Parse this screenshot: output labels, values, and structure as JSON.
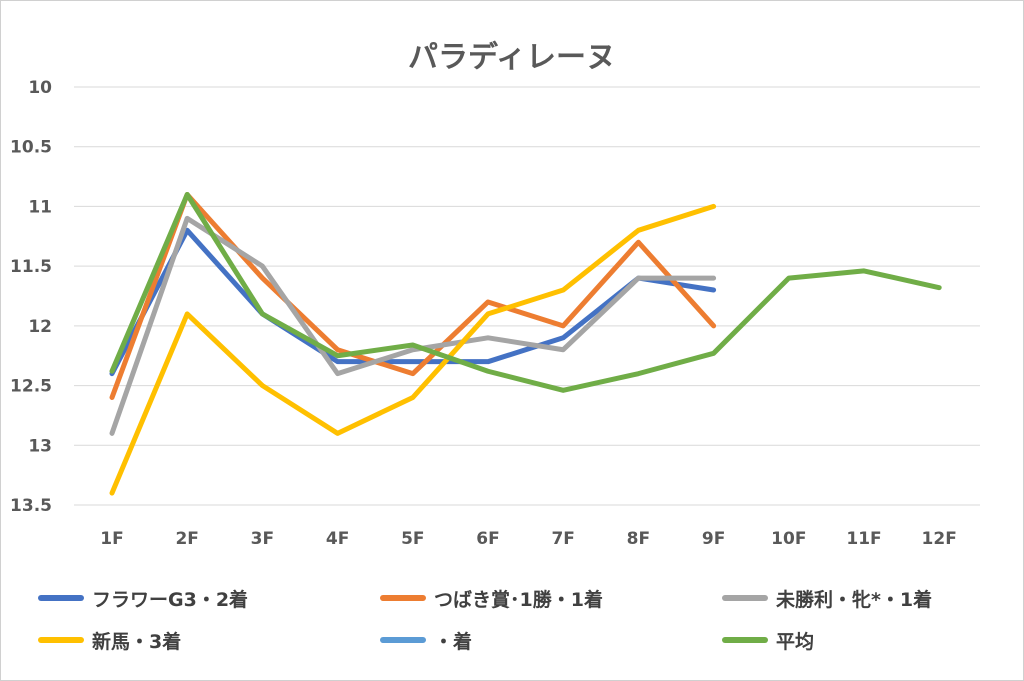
{
  "chart_data": {
    "type": "line",
    "title": "パラディレーヌ",
    "categories": [
      "1F",
      "2F",
      "3F",
      "4F",
      "5F",
      "6F",
      "7F",
      "8F",
      "9F",
      "10F",
      "11F",
      "12F"
    ],
    "y_tick_labels": [
      "10",
      "10.5",
      "11",
      "11.5",
      "12",
      "12.5",
      "13",
      "13.5"
    ],
    "ylim": [
      10,
      13.5
    ],
    "y_reversed": true,
    "grid": "horizontal",
    "legend_position": "bottom",
    "series": [
      {
        "name": "フラワーG3・2着",
        "color": "#4472C4",
        "values": [
          12.4,
          11.2,
          11.9,
          12.3,
          12.3,
          12.3,
          12.1,
          11.6,
          11.7,
          null,
          null,
          null
        ]
      },
      {
        "name": "つばき賞･1勝・1着",
        "color": "#ED7D31",
        "values": [
          12.6,
          10.9,
          11.6,
          12.2,
          12.4,
          11.8,
          12.0,
          11.3,
          12.0,
          null,
          null,
          null
        ]
      },
      {
        "name": "未勝利・牝*・1着",
        "color": "#A5A5A5",
        "values": [
          12.9,
          11.1,
          11.5,
          12.4,
          12.2,
          12.1,
          12.2,
          11.6,
          11.6,
          null,
          null,
          null
        ]
      },
      {
        "name": "新馬・3着",
        "color": "#FFC000",
        "values": [
          13.4,
          11.9,
          12.5,
          12.9,
          12.6,
          11.9,
          11.7,
          11.2,
          11.0,
          null,
          null,
          null
        ]
      },
      {
        "name": "・着",
        "color": "#5B9BD5",
        "values": [
          null,
          null,
          null,
          null,
          null,
          null,
          null,
          null,
          null,
          null,
          null,
          null
        ]
      },
      {
        "name": "平均",
        "color": "#70AD47",
        "values": [
          12.38,
          10.9,
          11.9,
          12.25,
          12.16,
          12.38,
          12.54,
          12.4,
          12.23,
          11.6,
          11.54,
          11.68
        ]
      }
    ]
  }
}
